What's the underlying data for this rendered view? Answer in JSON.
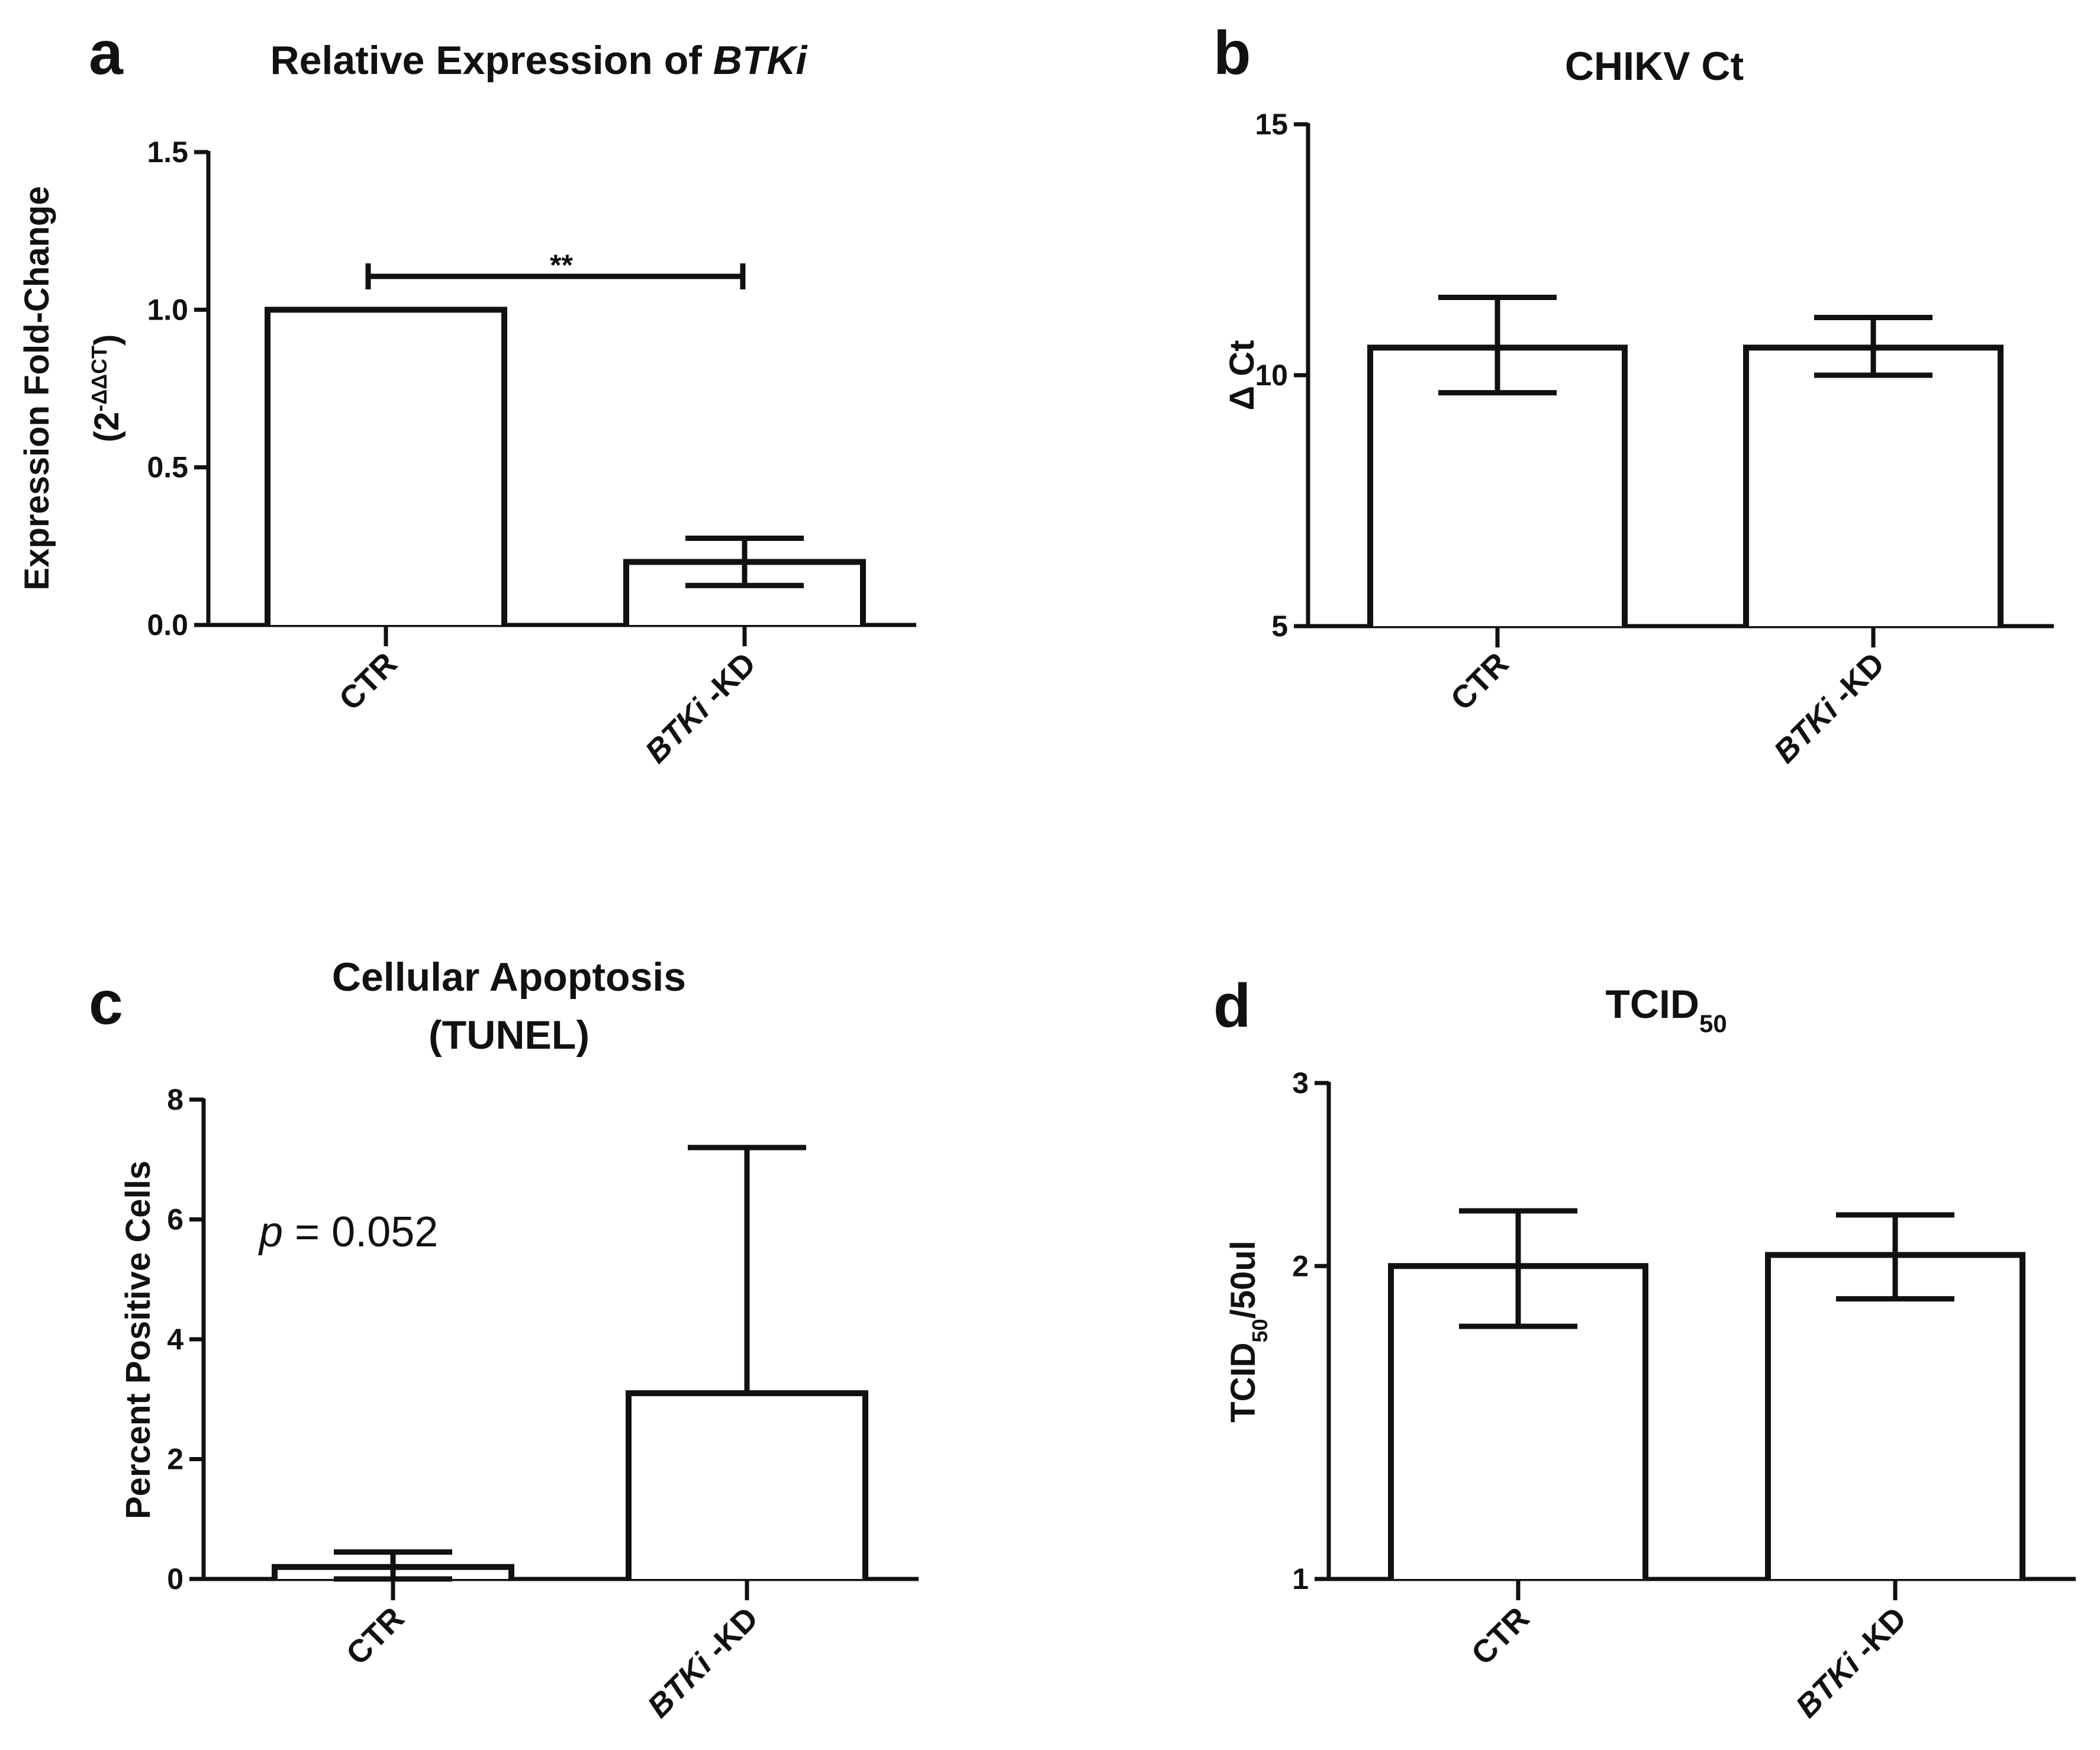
{
  "figure": {
    "panels": [
      {
        "letter": "a",
        "title_parts": [
          {
            "text": "Relative Expression of ",
            "italic": false
          },
          {
            "text": "BTKi",
            "italic": true
          }
        ],
        "ylabel_lines": [
          [
            {
              "text": "Expression Fold-Change"
            }
          ],
          [
            {
              "text": "(2"
            },
            {
              "text": "-ΔΔCT",
              "sup": true
            },
            {
              "text": ")"
            }
          ]
        ],
        "categories": [
          [
            {
              "text": "CTR"
            }
          ],
          [
            {
              "text": "BTKi",
              "italic": true
            },
            {
              "text": " -KD"
            }
          ]
        ],
        "ytick_labels": [
          "0.0",
          "0.5",
          "1.0",
          "1.5"
        ],
        "significance": "**"
      },
      {
        "letter": "b",
        "title_parts": [
          {
            "text": "CHIKV Ct"
          }
        ],
        "ylabel_lines": [
          [
            {
              "text": "Δ Ct"
            }
          ]
        ],
        "categories": [
          [
            {
              "text": "CTR"
            }
          ],
          [
            {
              "text": "BTKi",
              "italic": true
            },
            {
              "text": " -KD"
            }
          ]
        ],
        "ytick_labels": [
          "5",
          "10",
          "15"
        ]
      },
      {
        "letter": "c",
        "title_lines": [
          "Cellular Apoptosis",
          "(TUNEL)"
        ],
        "ylabel_lines": [
          [
            {
              "text": "Percent Positive Cells"
            }
          ]
        ],
        "categories": [
          [
            {
              "text": "CTR"
            }
          ],
          [
            {
              "text": "BTKi",
              "italic": true
            },
            {
              "text": " -KD"
            }
          ]
        ],
        "ytick_labels": [
          "0",
          "2",
          "4",
          "6",
          "8"
        ],
        "annotation_parts": [
          {
            "text": "p",
            "italic": true
          },
          {
            "text": "  = 0.052"
          }
        ]
      },
      {
        "letter": "d",
        "title_parts": [
          {
            "text": "TCID"
          },
          {
            "text": "50",
            "sub": true
          }
        ],
        "ylabel_lines": [
          [
            {
              "text": "TCID"
            },
            {
              "text": "50",
              "sub": true
            },
            {
              "text": "/50ul"
            }
          ]
        ],
        "categories": [
          [
            {
              "text": "CTR"
            }
          ],
          [
            {
              "text": "BTKi",
              "italic": true
            },
            {
              "text": " -KD"
            }
          ]
        ],
        "ytick_labels": [
          "1",
          "2",
          "3"
        ]
      }
    ]
  },
  "chart_data": [
    {
      "type": "bar",
      "title": "Relative Expression of BTKi",
      "ylabel": "Expression Fold-Change (2^-ΔΔCT)",
      "xlabel": "",
      "categories": [
        "CTR",
        "BTKi -KD"
      ],
      "values": [
        1.0,
        0.2
      ],
      "error_upper": [
        1.0,
        0.275
      ],
      "error_lower": [
        1.0,
        0.125
      ],
      "ylim": [
        0,
        1.5
      ],
      "yticks": [
        0,
        0.5,
        1.0,
        1.5
      ],
      "grid": false,
      "annotations": [
        "** between CTR and BTKi -KD"
      ]
    },
    {
      "type": "bar",
      "title": "CHIKV Ct",
      "ylabel": "Δ Ct",
      "xlabel": "",
      "categories": [
        "CTR",
        "BTKi -KD"
      ],
      "values": [
        10.55,
        10.55
      ],
      "error_upper": [
        11.55,
        11.15
      ],
      "error_lower": [
        9.65,
        10.0
      ],
      "ylim": [
        5,
        15
      ],
      "yticks": [
        5,
        10,
        15
      ],
      "grid": false
    },
    {
      "type": "bar",
      "title": "Cellular Apoptosis (TUNEL)",
      "ylabel": "Percent Positive Cells",
      "xlabel": "",
      "categories": [
        "CTR",
        "BTKi -KD"
      ],
      "values": [
        0.2,
        3.1
      ],
      "error_upper": [
        0.45,
        7.2
      ],
      "error_lower": [
        0.0,
        3.1
      ],
      "ylim": [
        0,
        8
      ],
      "yticks": [
        0,
        2,
        4,
        6,
        8
      ],
      "grid": false,
      "annotations": [
        "p = 0.052"
      ]
    },
    {
      "type": "bar",
      "title": "TCID50",
      "ylabel": "TCID50/50ul",
      "xlabel": "",
      "categories": [
        "CTR",
        "BTKi -KD"
      ],
      "values": [
        2.0,
        2.05
      ],
      "error_upper": [
        2.26,
        2.24
      ],
      "error_lower": [
        1.75,
        1.86
      ],
      "ylim": [
        1,
        3
      ],
      "yticks": [
        1,
        2,
        3
      ],
      "log_scale": "y",
      "grid": false
    }
  ]
}
